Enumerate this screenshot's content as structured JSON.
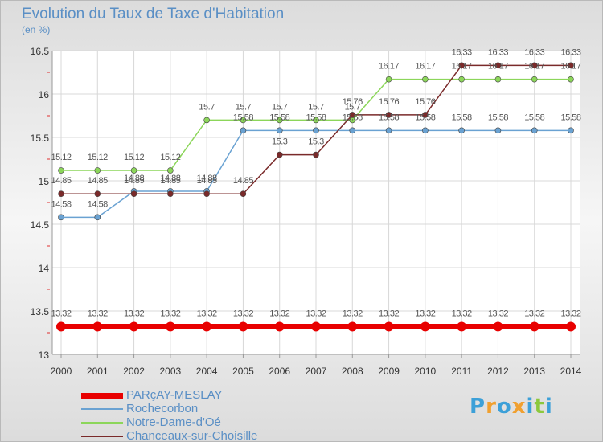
{
  "header": {
    "title": "Evolution du Taux de Taxe d'Habitation",
    "unit": "(en %)"
  },
  "logo": {
    "letters": [
      "P",
      "r",
      "o",
      "x",
      "i",
      "t",
      "i"
    ],
    "colors": [
      "#3ca0d8",
      "#f0a030",
      "#3ca0d8",
      "#f0a030",
      "#3ca0d8",
      "#8cc83c",
      "#3ca0d8"
    ]
  },
  "chart_data": {
    "type": "line",
    "x": [
      "2000",
      "2001",
      "2002",
      "2003",
      "2004",
      "2005",
      "2006",
      "2007",
      "2008",
      "2009",
      "2010",
      "2011",
      "2012",
      "2013",
      "2014"
    ],
    "ylim": [
      13,
      16.5
    ],
    "yticks": [
      "13",
      "13.5",
      "14",
      "14.5",
      "15",
      "15.5",
      "16",
      "16.5"
    ],
    "grid": true,
    "legend_position": "bottom-left",
    "series": [
      {
        "name": "PARçAY-MESLAY",
        "color": "#e80000",
        "values": [
          13.32,
          13.32,
          13.32,
          13.32,
          13.32,
          13.32,
          13.32,
          13.32,
          13.32,
          13.32,
          13.32,
          13.32,
          13.32,
          13.32,
          13.32
        ],
        "labels": [
          "13.32",
          "13.32",
          "13.32",
          "13.32",
          "13.32",
          "13.32",
          "13.32",
          "13.32",
          "13.32",
          "13.32",
          "13.32",
          "13.32",
          "13.32",
          "13.32",
          "13.32"
        ]
      },
      {
        "name": "Rochecorbon",
        "color": "#6aa2d2",
        "values": [
          14.58,
          14.58,
          14.88,
          14.88,
          14.88,
          15.58,
          15.58,
          15.58,
          15.58,
          15.58,
          15.58,
          15.58,
          15.58,
          15.58,
          15.58
        ],
        "labels": [
          "14.58",
          "14.58",
          "14.88",
          "14.88",
          "14.88",
          "15.58",
          "15.58",
          "15.58",
          "15.58",
          "15.58",
          "15.58",
          "15.58",
          "15.58",
          "15.58",
          "15.58"
        ]
      },
      {
        "name": "Notre-Dame-d'Oé",
        "color": "#8cd65a",
        "values": [
          15.12,
          15.12,
          15.12,
          15.12,
          15.7,
          15.7,
          15.7,
          15.7,
          15.7,
          16.17,
          16.17,
          16.17,
          16.17,
          16.17,
          16.17
        ],
        "labels": [
          "15.12",
          "15.12",
          "15.12",
          "15.12",
          "15.7",
          "15.7",
          "15.7",
          "15.7",
          "15.7",
          "16.17",
          "16.17",
          "16.17",
          "16.17",
          "16.17",
          "16.17"
        ]
      },
      {
        "name": "Chanceaux-sur-Choisille",
        "color": "#7a2a2a",
        "values": [
          14.85,
          14.85,
          14.85,
          14.85,
          14.85,
          14.85,
          15.3,
          15.3,
          15.76,
          15.76,
          15.76,
          16.33,
          16.33,
          16.33,
          16.33
        ],
        "labels": [
          "14.85",
          "14.85",
          "14.85",
          "14.85",
          "14.85",
          "14.85",
          "15.3",
          "15.3",
          "15.76",
          "15.76",
          "15.76",
          "16.33",
          "16.33",
          "16.33",
          "16.33"
        ]
      }
    ]
  }
}
